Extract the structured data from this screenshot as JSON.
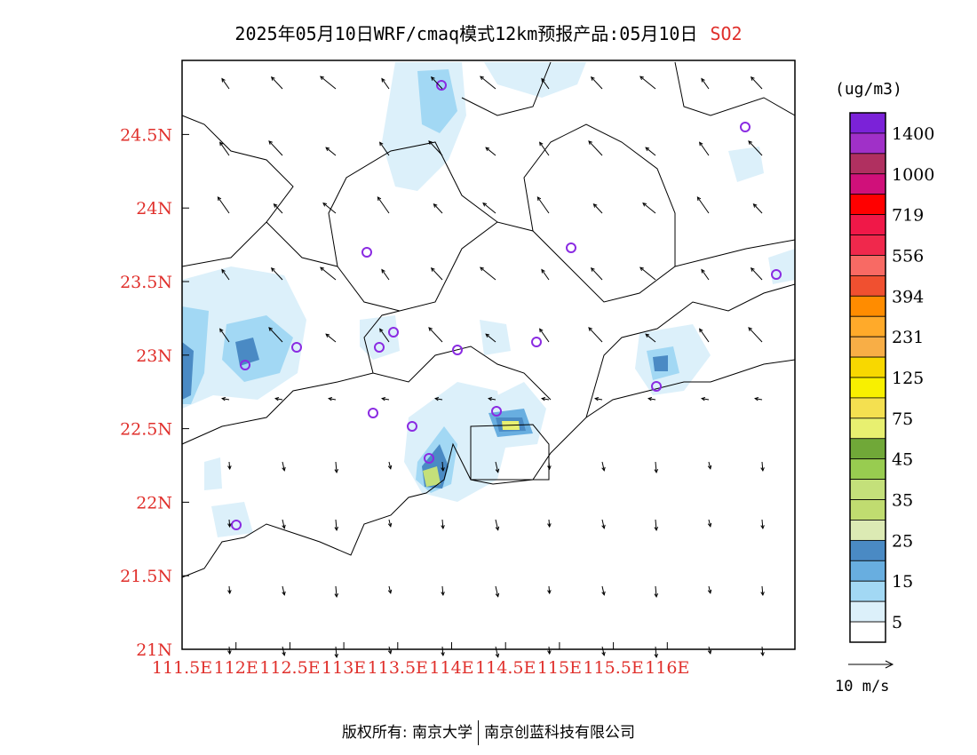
{
  "title": {
    "main": "2025年05月10日WRF/cmaq模式12km预报产品:05月10日",
    "pollutant": "SO2"
  },
  "axes": {
    "lon_ticks": [
      "111.5E",
      "112E",
      "112.5E",
      "113E",
      "113.5E",
      "114E",
      "114.5E",
      "115E",
      "115.5E",
      "116E"
    ],
    "lat_ticks": [
      "21N",
      "21.5N",
      "22N",
      "22.5N",
      "23N",
      "23.5N",
      "24N",
      "24.5N"
    ],
    "tick_color": "#e0302c"
  },
  "colorbar": {
    "unit": "(ug/m3)",
    "labels": [
      "1400",
      "1000",
      "719",
      "556",
      "394",
      "231",
      "125",
      "75",
      "45",
      "35",
      "25",
      "15",
      "5"
    ],
    "colors": [
      "#7b22d8",
      "#a030c8",
      "#b03060",
      "#d0107a",
      "#ff0000",
      "#f01848",
      "#f0284c",
      "#f86a64",
      "#f05030",
      "#ff8c00",
      "#ffaa2a",
      "#f8ae46",
      "#f8d800",
      "#f8f000",
      "#f4e050",
      "#e8f070",
      "#70a838",
      "#98cc50",
      "#c4e07a",
      "#c0dc70",
      "#dceab4",
      "#4a8ac4",
      "#68aee0",
      "#a2d8f4",
      "#dcf0fa",
      "#ffffff"
    ]
  },
  "wind_reference": {
    "label": "10 m/s"
  },
  "credit": {
    "left": "版权所有: 南京大学",
    "right": "南京创蓝科技有限公司"
  }
}
